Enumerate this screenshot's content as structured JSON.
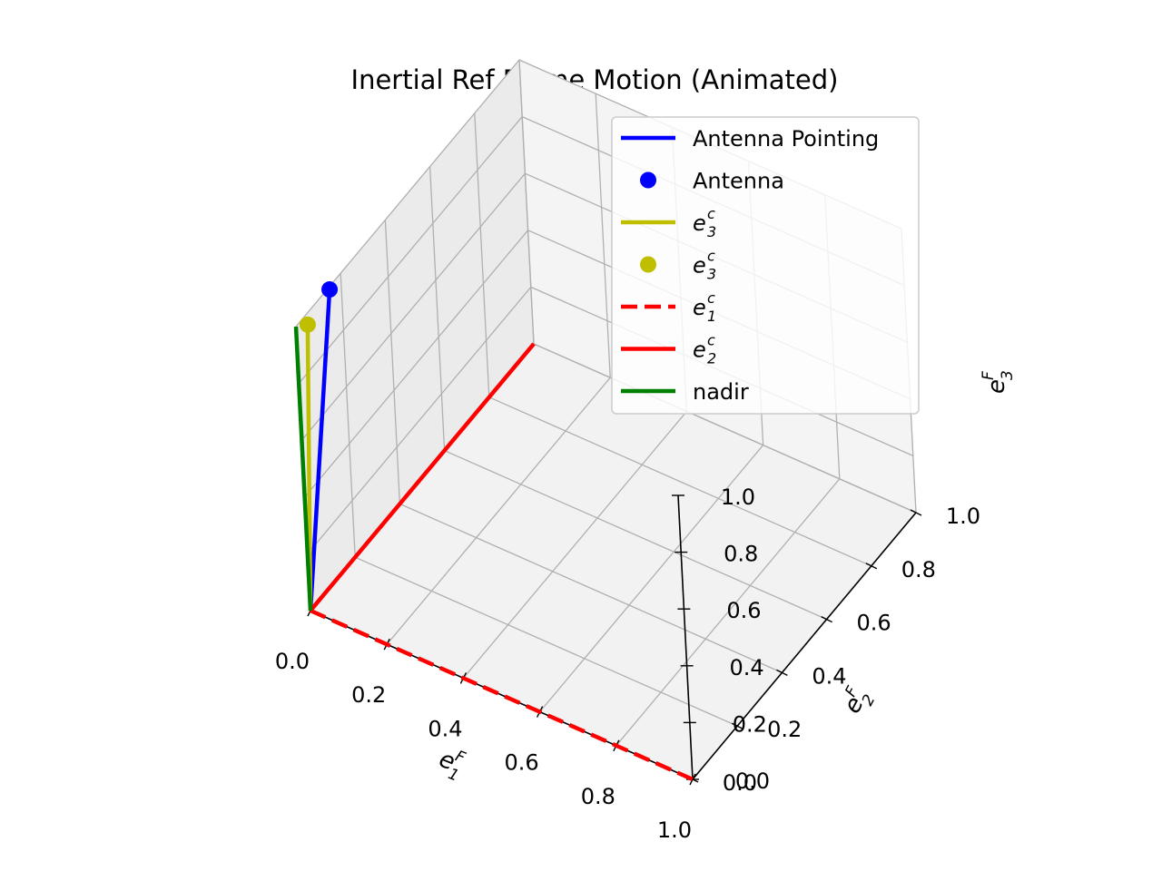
{
  "chart_data": {
    "type": "line3d",
    "title": "Inertial Ref Frame Motion (Animated)",
    "axes": {
      "x": {
        "base": "e",
        "sub": "1",
        "sup": "F",
        "range": [
          0,
          1
        ],
        "ticks": [
          "0.0",
          "0.2",
          "0.4",
          "0.6",
          "0.8",
          "1.0"
        ]
      },
      "y": {
        "base": "e",
        "sub": "2",
        "sup": "F",
        "range": [
          0,
          1
        ],
        "ticks": [
          "0.0",
          "0.2",
          "0.4",
          "0.6",
          "0.8",
          "1.0"
        ]
      },
      "z": {
        "base": "e",
        "sub": "3",
        "sup": "F",
        "range": [
          0,
          1
        ],
        "ticks": [
          "0.0",
          "0.2",
          "0.4",
          "0.6",
          "0.8",
          "1.0"
        ]
      }
    },
    "grid": true,
    "legend_position": "top-right",
    "series": [
      {
        "legend": {
          "plain": "Antenna Pointing"
        },
        "kind": "line",
        "color": "#0000ff",
        "dash": false,
        "points": [
          [
            0,
            0,
            0
          ],
          [
            0,
            0.15,
            0.99
          ]
        ]
      },
      {
        "legend": {
          "plain": "Antenna"
        },
        "kind": "marker",
        "color": "#0000ff",
        "points": [
          [
            0,
            0.15,
            0.99
          ]
        ]
      },
      {
        "legend": {
          "base": "e",
          "sub": "3",
          "sup": "c"
        },
        "kind": "line",
        "color": "#bfbf00",
        "dash": false,
        "points": [
          [
            0,
            0,
            0
          ],
          [
            0,
            0.05,
            0.96
          ]
        ]
      },
      {
        "legend": {
          "base": "e",
          "sub": "3",
          "sup": "c"
        },
        "kind": "marker",
        "color": "#bfbf00",
        "points": [
          [
            0,
            0.05,
            0.96
          ]
        ]
      },
      {
        "legend": {
          "base": "e",
          "sub": "1",
          "sup": "c"
        },
        "kind": "line",
        "color": "#ff0000",
        "dash": true,
        "points": [
          [
            0,
            0,
            0
          ],
          [
            1,
            0,
            0
          ]
        ]
      },
      {
        "legend": {
          "base": "e",
          "sub": "2",
          "sup": "c"
        },
        "kind": "line",
        "color": "#ff0000",
        "dash": false,
        "points": [
          [
            0,
            0,
            0
          ],
          [
            0,
            1,
            0
          ]
        ]
      },
      {
        "legend": {
          "plain": "nadir"
        },
        "kind": "line",
        "color": "#008000",
        "dash": false,
        "points": [
          [
            0,
            0,
            0
          ],
          [
            0,
            0,
            1
          ]
        ]
      }
    ]
  }
}
